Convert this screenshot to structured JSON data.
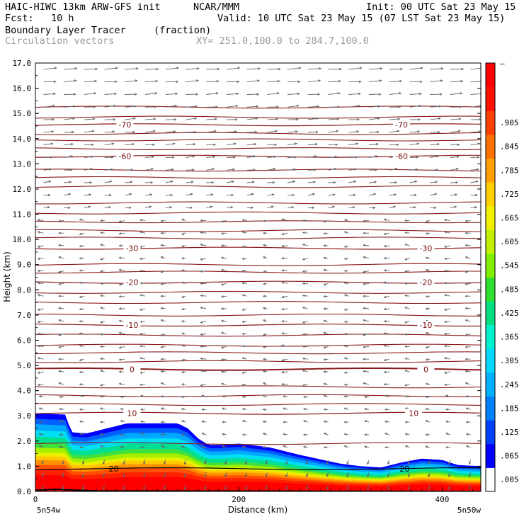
{
  "header": {
    "model": "HAIC-HIWC 13km ARW-GFS init",
    "org": "NCAR/MMM",
    "init": "Init: 00 UTC Sat 23 May 15",
    "fcst": "Fcst:   10 h",
    "valid": "Valid: 10 UTC Sat 23 May 15 (07 LST Sat 23 May 15)",
    "field": "Boundary Layer Tracer",
    "units": "(fraction)",
    "vectors": "Circulation vectors",
    "xy": "XY= 251.0,100.0 to 284.7,100.0"
  },
  "colors": {
    "contour_temp": "#8b1a1a",
    "vector": "#666666",
    "colorbar": [
      "#ffffff",
      "#0000ff",
      "#0040ff",
      "#0080ff",
      "#00b0ff",
      "#00d8ff",
      "#00f0d0",
      "#00e080",
      "#30e030",
      "#80f000",
      "#c0f000",
      "#f0f000",
      "#ffd000",
      "#ffa000",
      "#ff7000",
      "#ff4000",
      "#ff1000",
      "#ff0000"
    ]
  },
  "chart_data": {
    "type": "cross-section",
    "title": "Boundary Layer Tracer",
    "xlabel": "Distance (km)",
    "ylabel": "Height (km)",
    "xlim": [
      0,
      438
    ],
    "ylim": [
      0,
      17
    ],
    "x_ticks": [
      0,
      200,
      400
    ],
    "y_ticks": [
      "0.0",
      "1.0",
      "2.0",
      "3.0",
      "4.0",
      "5.0",
      "6.0",
      "7.0",
      "8.0",
      "9.0",
      "10.0",
      "11.0",
      "12.0",
      "13.0",
      "14.0",
      "15.0",
      "16.0",
      "17.0"
    ],
    "x_endpoints": {
      "left": "5n54w",
      "right": "5n50w"
    },
    "colorbar_labels": [
      ".005",
      ".065",
      ".125",
      ".185",
      ".245",
      ".305",
      ".365",
      ".425",
      ".485",
      ".545",
      ".605",
      ".665",
      ".725",
      ".785",
      ".845",
      ".905",
      "–"
    ],
    "temperature_contours_C": [
      {
        "value": 20,
        "label": "20",
        "height_km": 0.9
      },
      {
        "value": 10,
        "label": "10",
        "height_km": 3.1
      },
      {
        "value": 0,
        "label": "0",
        "height_km": 4.85
      },
      {
        "value": -10,
        "label": "-10",
        "height_km": 6.6
      },
      {
        "value": -20,
        "label": "-20",
        "height_km": 8.3
      },
      {
        "value": -30,
        "label": "-30",
        "height_km": 9.65
      },
      {
        "value": -60,
        "label": "-60",
        "height_km": 13.3
      },
      {
        "value": -70,
        "label": "-70",
        "height_km": 14.55
      }
    ],
    "contour_heights_km": [
      1.9,
      3.45,
      3.8,
      4.15,
      5.15,
      5.5,
      5.8,
      6.2,
      7.0,
      7.5,
      7.9,
      8.7,
      9.0,
      10.05,
      10.35,
      10.7,
      11.05,
      11.45,
      12.1,
      12.45,
      12.75,
      13.6,
      13.95,
      14.2,
      14.85,
      15.25
    ],
    "boundary_layer_top_km": [
      [
        0,
        3.1
      ],
      [
        30,
        3.05
      ],
      [
        35,
        2.35
      ],
      [
        50,
        2.3
      ],
      [
        70,
        2.5
      ],
      [
        90,
        2.7
      ],
      [
        140,
        2.7
      ],
      [
        150,
        2.5
      ],
      [
        160,
        2.1
      ],
      [
        170,
        1.85
      ],
      [
        185,
        1.85
      ],
      [
        200,
        1.9
      ],
      [
        230,
        1.75
      ],
      [
        260,
        1.45
      ],
      [
        300,
        1.1
      ],
      [
        320,
        1.0
      ],
      [
        340,
        0.95
      ],
      [
        360,
        1.15
      ],
      [
        380,
        1.3
      ],
      [
        400,
        1.25
      ],
      [
        415,
        1.05
      ],
      [
        438,
        1.0
      ]
    ],
    "field_range": [
      0.005,
      1.0
    ]
  }
}
